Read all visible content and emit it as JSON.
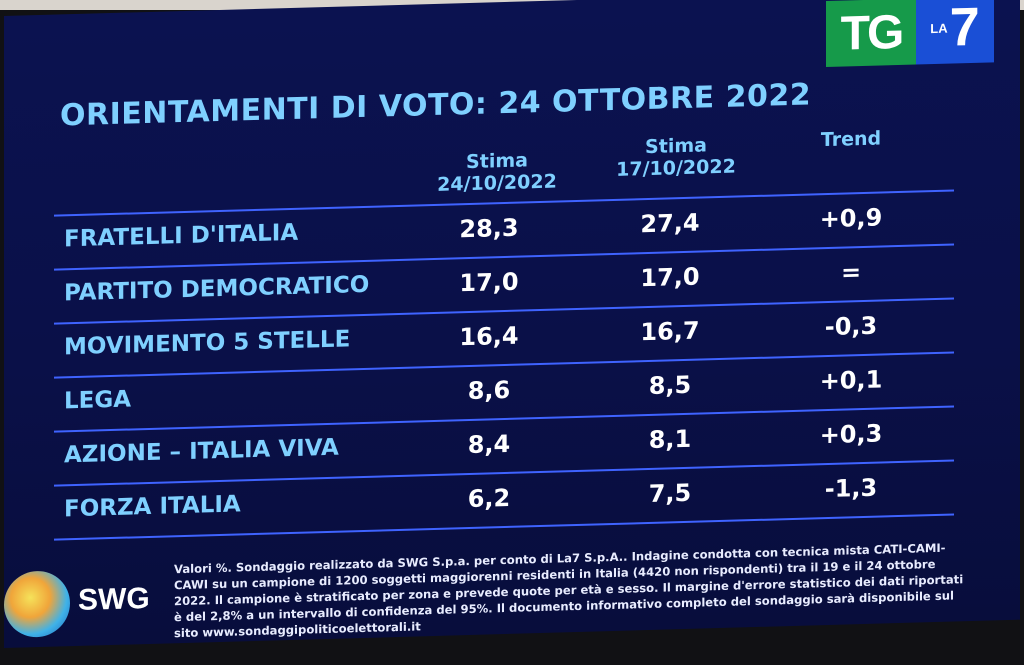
{
  "logo": {
    "tg": "TG",
    "la": "LA",
    "seven": "7"
  },
  "title": "ORIENTAMENTI DI VOTO: 24 OTTOBRE 2022",
  "columns": {
    "c1_line1": "Stima",
    "c1_line2": "24/10/2022",
    "c2_line1": "Stima",
    "c2_line2": "17/10/2022",
    "c3": "Trend"
  },
  "rows": [
    {
      "party": "FRATELLI D'ITALIA",
      "v1": "28,3",
      "v2": "27,4",
      "trend": "+0,9"
    },
    {
      "party": "PARTITO DEMOCRATICO",
      "v1": "17,0",
      "v2": "17,0",
      "trend": "="
    },
    {
      "party": "MOVIMENTO 5 STELLE",
      "v1": "16,4",
      "v2": "16,7",
      "trend": "-0,3"
    },
    {
      "party": "LEGA",
      "v1": "8,6",
      "v2": "8,5",
      "trend": "+0,1"
    },
    {
      "party": "AZIONE – ITALIA VIVA",
      "v1": "8,4",
      "v2": "8,1",
      "trend": "+0,3"
    },
    {
      "party": "FORZA ITALIA",
      "v1": "6,2",
      "v2": "7,5",
      "trend": "-1,3"
    }
  ],
  "footer": {
    "brand": "SWG",
    "note": "Valori %. Sondaggio realizzato da SWG S.p.a. per conto di La7 S.p.A.. Indagine condotta con tecnica mista CATI-CAMI-CAWI su un campione di 1200 soggetti maggiorenni residenti in Italia (4420 non rispondenti) tra il 19 e il 24 ottobre 2022. Il campione è stratificato per zona e prevede quote per età e sesso. Il margine d'errore statistico dei dati riportati è del 2,8% a un intervallo di confidenza del 95%. Il documento informativo completo del sondaggio sarà disponibile sul sito www.sondaggipoliticoelettorali.it"
  },
  "colors": {
    "screen_bg": "#0b1250",
    "accent_text": "#7fd0ff",
    "rule": "#3f63ff",
    "tg_green": "#169a4a",
    "la7_blue": "#1a4fd6"
  }
}
